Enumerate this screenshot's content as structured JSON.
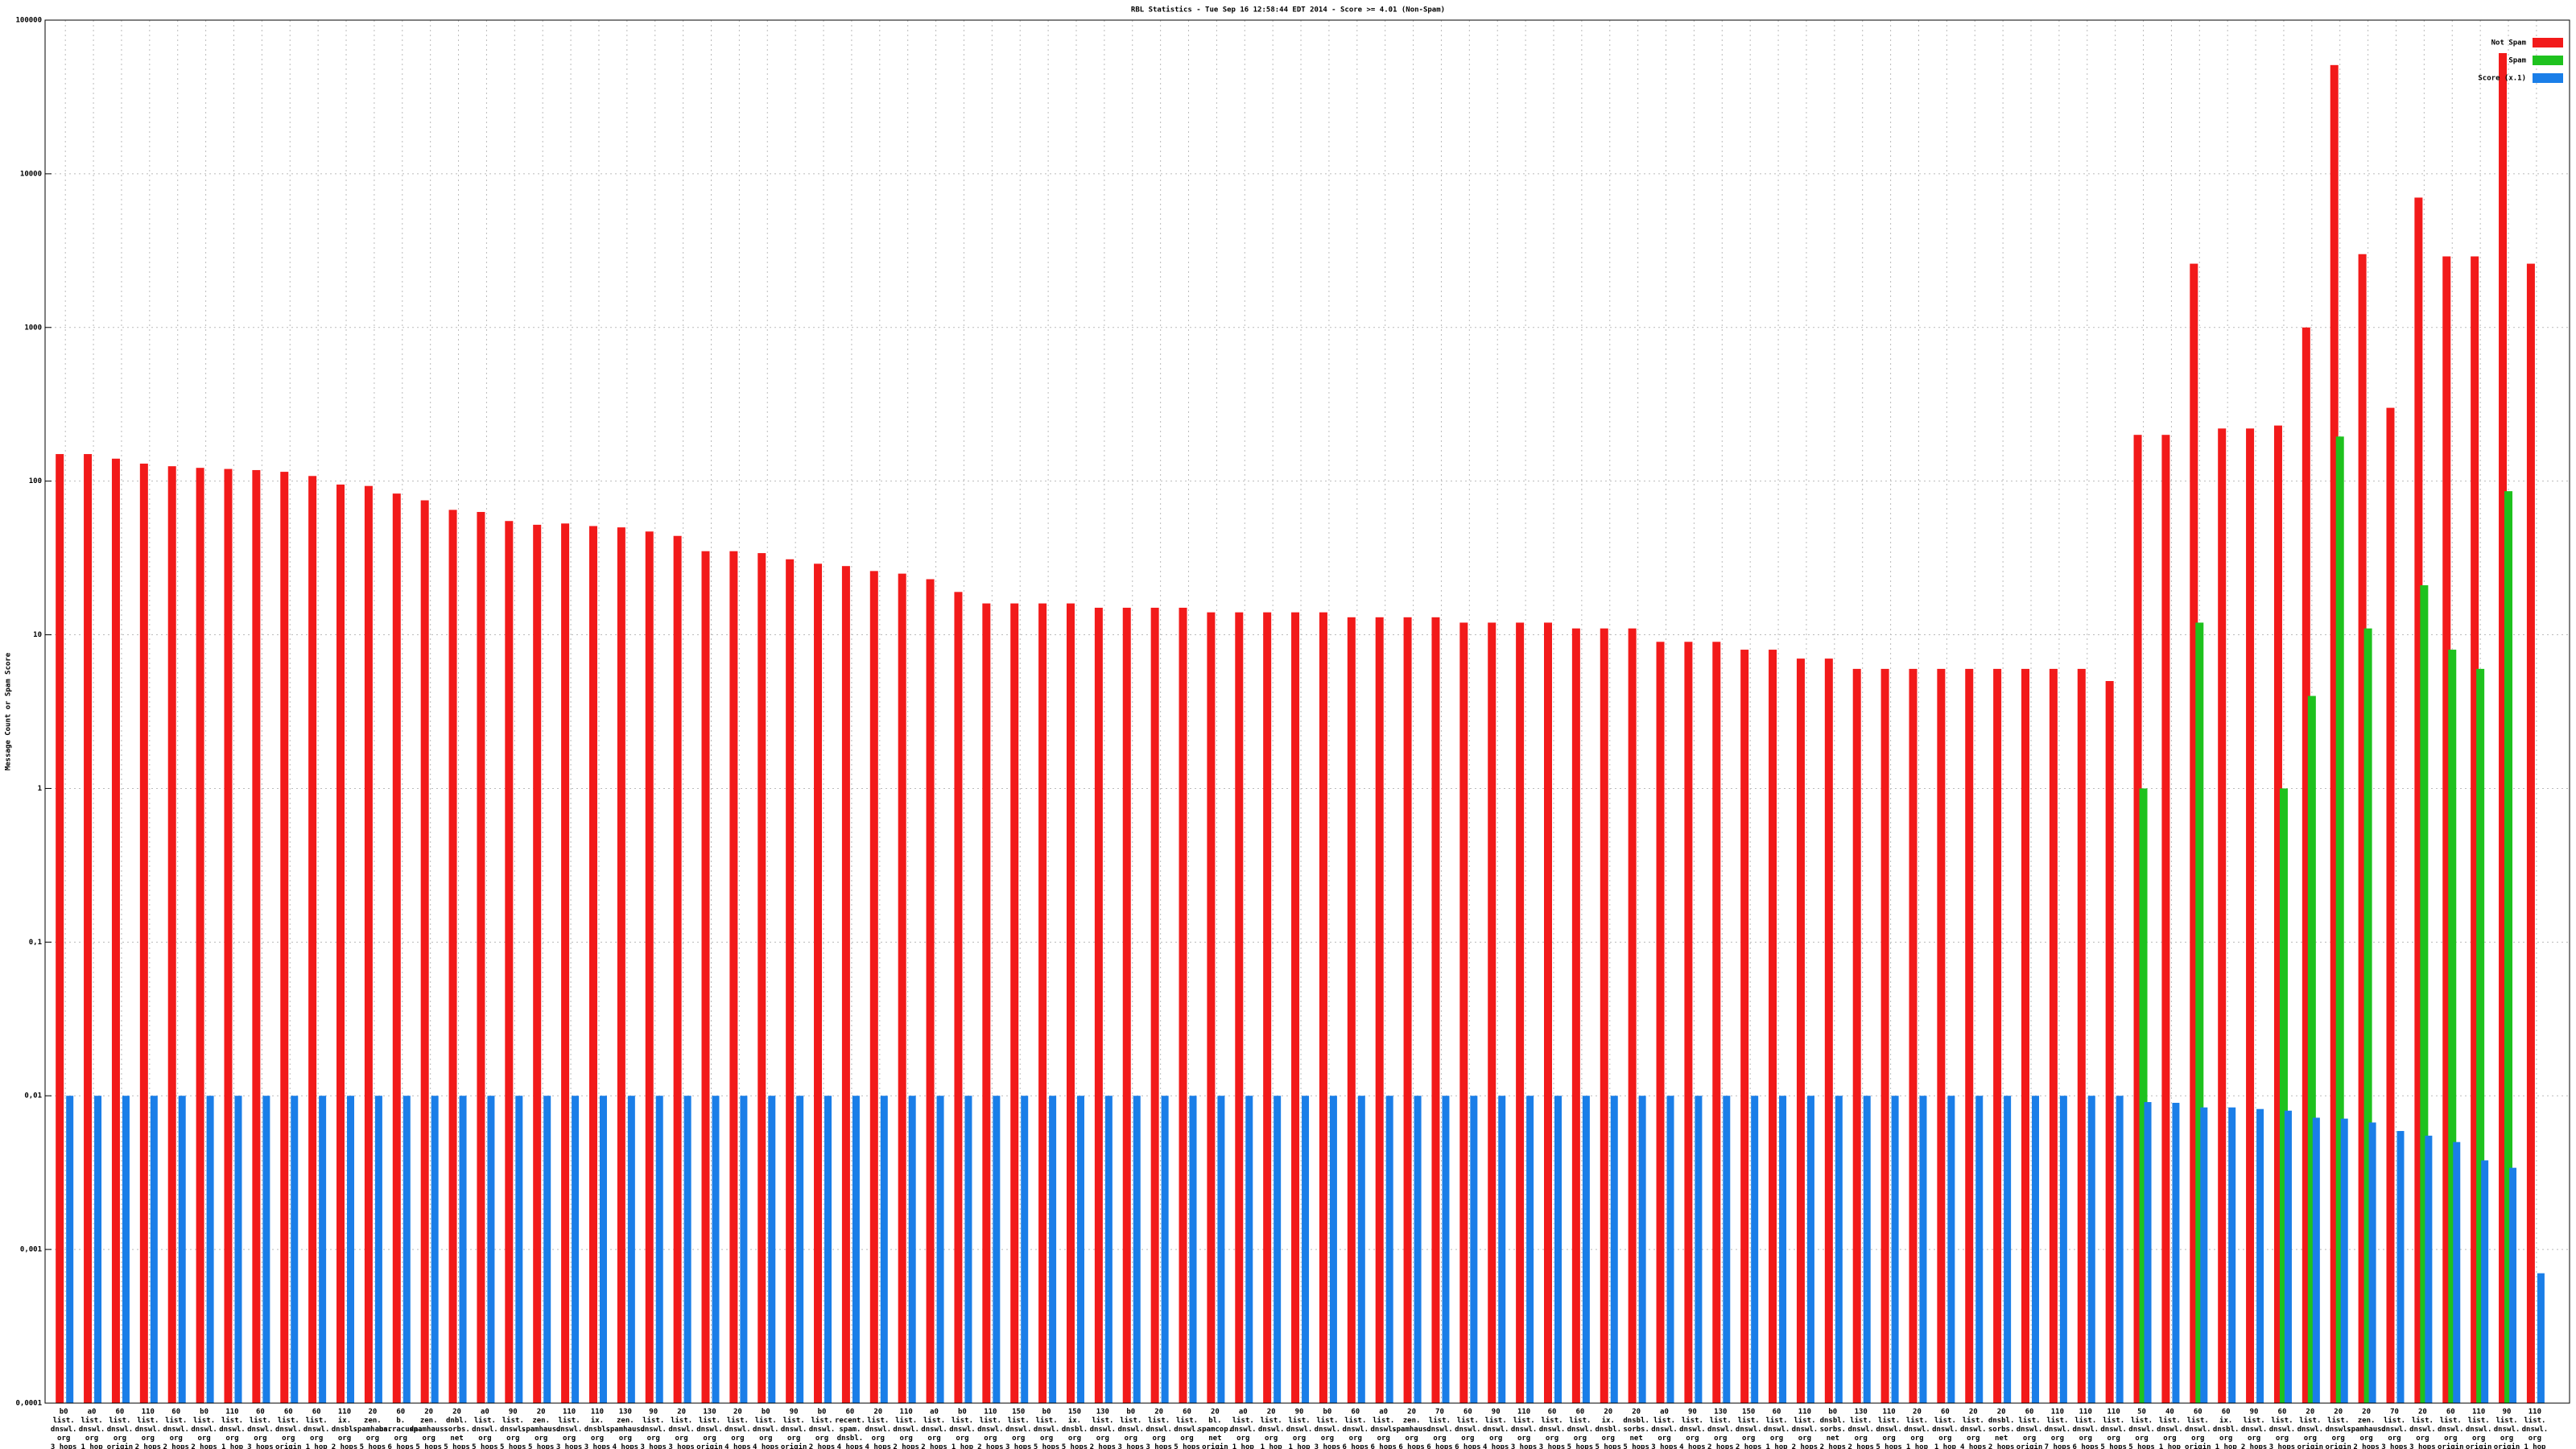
{
  "chart_data": {
    "type": "bar",
    "title": "RBL Statistics - Tue Sep 16 12:58:44 EDT 2014 - Score >= 4.01 (Non-Spam)",
    "y_label": "Message Count or Spam Score",
    "log_scale": true,
    "grid": true,
    "legend_position": "top-right",
    "ylim": [
      0.0001,
      100000
    ],
    "yticks": [
      {
        "value": 0.0001,
        "label": "0,0001"
      },
      {
        "value": 0.001,
        "label": "0,001"
      },
      {
        "value": 0.01,
        "label": "0,01"
      },
      {
        "value": 0.1,
        "label": "0,1"
      },
      1,
      10,
      100,
      1000,
      10000,
      100000
    ],
    "categories": [
      "b0\nlist.\ndnswl.\norg\n3 hops",
      "a0\nlist.\ndnswl.\norg\n1 hop",
      "60\nlist.\ndnswl.\norg\norigin",
      "110\nlist.\ndnswl.\norg\n2 hops",
      "60\nlist.\ndnswl.\norg\n2 hops",
      "b0\nlist.\ndnswl.\norg\n2 hops",
      "110\nlist.\ndnswl.\norg\n1 hop",
      "60\nlist.\ndnswl.\norg\n3 hops",
      "60\nlist.\ndnswl.\norg\norigin",
      "60\nlist.\ndnswl.\norg\n1 hop",
      "110\nix.\ndnsbl.\norg\n2 hops",
      "20\nzen.\nspamhaus.\norg\n5 hops",
      "60\nb.\nbarracuda.\norg\n6 hops",
      "20\nzen.\nspamhaus.\norg\n5 hops",
      "20\ndnbl.\nsorbs.\nnet\n5 hops",
      "a0\nlist.\ndnswl.\norg\n5 hops",
      "90\nlist.\ndnswl.\norg\n5 hops",
      "20\nzen.\nspamhaus.\norg\n5 hops",
      "110\nlist.\ndnswl.\norg\n3 hops",
      "110\nix.\ndnsbl.\norg\n3 hops",
      "130\nzen.\nspamhaus.\norg\n4 hops",
      "90\nlist.\ndnswl.\norg\n3 hops",
      "20\nlist.\ndnswl.\norg\n3 hops",
      "130\nlist.\ndnswl.\norg\norigin",
      "20\nlist.\ndnswl.\norg\n4 hops",
      "b0\nlist.\ndnswl.\norg\n4 hops",
      "90\nlist.\ndnswl.\norg\norigin",
      "b0\nlist.\ndnswl.\norg\n2 hops",
      "60\nrecent.\nspam.\ndnsbl.\n4 hops",
      "20\nlist.\ndnswl.\norg\n4 hops",
      "110\nlist.\ndnswl.\norg\n2 hops",
      "a0\nlist.\ndnswl.\norg\n2 hops",
      "b0\nlist.\ndnswl.\norg\n1 hop",
      "110\nlist.\ndnswl.\norg\n2 hops",
      "150\nlist.\ndnswl.\norg\n3 hops",
      "b0\nlist.\ndnswl.\norg\n5 hops",
      "150\nix.\ndnsbl.\norg\n5 hops",
      "130\nlist.\ndnswl.\norg\n2 hops",
      "b0\nlist.\ndnswl.\norg\n3 hops",
      "20\nlist.\ndnswl.\norg\n3 hops",
      "60\nlist.\ndnswl.\norg\n5 hops",
      "20\nbl.\nspamcop.\nnet\norigin",
      "a0\nlist.\ndnswl.\norg\n1 hop",
      "20\nlist.\ndnswl.\norg\n1 hop",
      "90\nlist.\ndnswl.\norg\n1 hop",
      "b0\nlist.\ndnswl.\norg\n3 hops",
      "60\nlist.\ndnswl.\norg\n6 hops",
      "a0\nlist.\ndnswl.\norg\n6 hops",
      "20\nzen.\nspamhaus.\norg\n6 hops",
      "70\nlist.\ndnswl.\norg\n6 hops",
      "60\nlist.\ndnswl.\norg\n6 hops",
      "90\nlist.\ndnswl.\norg\n4 hops",
      "110\nlist.\ndnswl.\norg\n3 hops",
      "60\nlist.\ndnswl.\norg\n3 hops",
      "60\nlist.\ndnswl.\norg\n5 hops",
      "20\nix.\ndnsbl.\norg\n5 hops",
      "20\ndnsbl.\nsorbs.\nnet\n5 hops",
      "a0\nlist.\ndnswl.\norg\n3 hops",
      "90\nlist.\ndnswl.\norg\n4 hops",
      "130\nlist.\ndnswl.\norg\n2 hops",
      "150\nlist.\ndnswl.\norg\n2 hops",
      "60\nlist.\ndnswl.\norg\n1 hop",
      "110\nlist.\ndnswl.\norg\n2 hops",
      "b0\ndnsbl.\nsorbs.\nnet\n2 hops",
      "130\nlist.\ndnswl.\norg\n2 hops",
      "110\nlist.\ndnswl.\norg\n5 hops",
      "20\nlist.\ndnswl.\norg\n1 hop",
      "60\nlist.\ndnswl.\norg\n1 hop",
      "20\nlist.\ndnswl.\norg\n4 hops",
      "20\ndnsbl.\nsorbs.\nnet\n2 hops",
      "60\nlist.\ndnswl.\norg\norigin",
      "110\nlist.\ndnswl.\norg\n7 hops",
      "110\nlist.\ndnswl.\norg\n6 hops",
      "110\nlist.\ndnswl.\norg\n5 hops",
      "50\nlist.\ndnswl.\norg\n5 hops",
      "40\nlist.\ndnswl.\norg\n1 hop",
      "60\nlist.\ndnswl.\norg\norigin",
      "60\nix.\ndnsbl.\norg\n1 hop",
      "90\nlist.\ndnswl.\norg\n2 hops",
      "60\nlist.\ndnswl.\norg\n3 hops",
      "20\nlist.\ndnswl.\norg\norigin",
      "20\nlist.\ndnswl.\norg\norigin",
      "20\nzen.\nspamhaus.\norg\n2 hops",
      "70\nlist.\ndnswl.\norg\n3 hops",
      "20\nlist.\ndnswl.\norg\n3 hops",
      "60\nlist.\ndnswl.\norg\norigin",
      "110\nlist.\ndnswl.\norg\norigin",
      "90\nlist.\ndnswl.\norg\norigin",
      "110\nlist.\ndnswl.\norg\n1 hop"
    ],
    "series": [
      {
        "name": "Not Spam",
        "color": "#f21a1a",
        "values": [
          150,
          150,
          140,
          130,
          125,
          122,
          120,
          118,
          115,
          108,
          95,
          93,
          83,
          75,
          65,
          63,
          55,
          52,
          53,
          51,
          50,
          47,
          44,
          35,
          35,
          34,
          31,
          29,
          28,
          26,
          25,
          23,
          19,
          16,
          16,
          16,
          16,
          15,
          15,
          15,
          15,
          14,
          14,
          14,
          14,
          14,
          13,
          13,
          13,
          13,
          12,
          12,
          12,
          12,
          11,
          11,
          11,
          9,
          9,
          9,
          8,
          8,
          7,
          7,
          6,
          6,
          6,
          6,
          6,
          6,
          6,
          6,
          6,
          5,
          200,
          200,
          2600,
          220,
          220,
          230,
          1000,
          51000,
          3000,
          300,
          7000,
          2900,
          2900,
          61000,
          2600
        ]
      },
      {
        "name": "Spam",
        "color": "#1ec21e",
        "values": [
          null,
          null,
          null,
          null,
          null,
          null,
          null,
          null,
          null,
          null,
          null,
          null,
          null,
          null,
          null,
          null,
          null,
          null,
          null,
          null,
          null,
          null,
          null,
          null,
          null,
          null,
          null,
          null,
          null,
          null,
          null,
          null,
          null,
          null,
          null,
          null,
          null,
          null,
          null,
          null,
          null,
          null,
          null,
          null,
          null,
          null,
          null,
          null,
          null,
          null,
          null,
          null,
          null,
          null,
          null,
          null,
          null,
          null,
          null,
          null,
          null,
          null,
          null,
          null,
          null,
          null,
          null,
          null,
          null,
          null,
          null,
          null,
          null,
          null,
          1,
          null,
          12,
          null,
          null,
          1,
          4,
          195,
          11,
          null,
          21,
          8,
          6,
          86,
          null
        ]
      },
      {
        "name": "Score (x.1)",
        "color": "#1a7ee8",
        "values": [
          0.01,
          0.01,
          0.01,
          0.01,
          0.01,
          0.01,
          0.01,
          0.01,
          0.01,
          0.01,
          0.01,
          0.01,
          0.01,
          0.01,
          0.01,
          0.01,
          0.01,
          0.01,
          0.01,
          0.01,
          0.01,
          0.01,
          0.01,
          0.01,
          0.01,
          0.01,
          0.01,
          0.01,
          0.01,
          0.01,
          0.01,
          0.01,
          0.01,
          0.01,
          0.01,
          0.01,
          0.01,
          0.01,
          0.01,
          0.01,
          0.01,
          0.01,
          0.01,
          0.01,
          0.01,
          0.01,
          0.01,
          0.01,
          0.01,
          0.01,
          0.01,
          0.01,
          0.01,
          0.01,
          0.01,
          0.01,
          0.01,
          0.01,
          0.01,
          0.01,
          0.01,
          0.01,
          0.01,
          0.01,
          0.01,
          0.01,
          0.01,
          0.01,
          0.01,
          0.01,
          0.01,
          0.01,
          0.01,
          0.01,
          0.0091,
          0.009,
          0.0084,
          0.0084,
          0.0082,
          0.008,
          0.0072,
          0.0071,
          0.0067,
          0.0059,
          0.0055,
          0.005,
          0.0038,
          0.0034,
          0.0007
        ]
      }
    ]
  }
}
